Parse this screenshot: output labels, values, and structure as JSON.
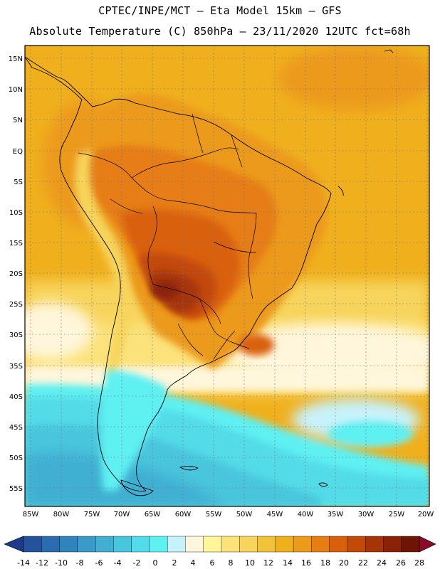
{
  "header": {
    "line1": "CPTEC/INPE/MCT –  Eta Model 15km – GFS",
    "line2": "Absolute Temperature (C) 850hPa – 23/11/2020 12UTC fct=68h"
  },
  "map": {
    "lat_labels": [
      "15N",
      "10N",
      "5N",
      "EQ",
      "5S",
      "10S",
      "15S",
      "20S",
      "25S",
      "30S",
      "35S",
      "40S",
      "45S",
      "50S",
      "55S"
    ],
    "lon_labels": [
      "85W",
      "80W",
      "75W",
      "70W",
      "65W",
      "60W",
      "55W",
      "50W",
      "45W",
      "40W",
      "35W",
      "30W",
      "25W",
      "20W"
    ]
  },
  "colorbar": {
    "labels": [
      "-14",
      "-12",
      "-10",
      "-8",
      "-6",
      "-4",
      "-2",
      "0",
      "2",
      "4",
      "6",
      "8",
      "10",
      "12",
      "14",
      "16",
      "18",
      "20",
      "22",
      "24",
      "26",
      "28"
    ],
    "colors": [
      "#1e3a8a",
      "#24539c",
      "#2b6bb0",
      "#3183bd",
      "#3a9ac8",
      "#41afd2",
      "#48c6dd",
      "#52dbe8",
      "#5ff0f2",
      "#c8f2fb",
      "#fff6dc",
      "#fff59a",
      "#fbe27a",
      "#f7d45c",
      "#f2c23a",
      "#f0b01e",
      "#ec9a1a",
      "#e67d12",
      "#d9600a",
      "#c24a08",
      "#a53408",
      "#8a2208",
      "#6e1606",
      "#8b0a2a"
    ]
  }
}
